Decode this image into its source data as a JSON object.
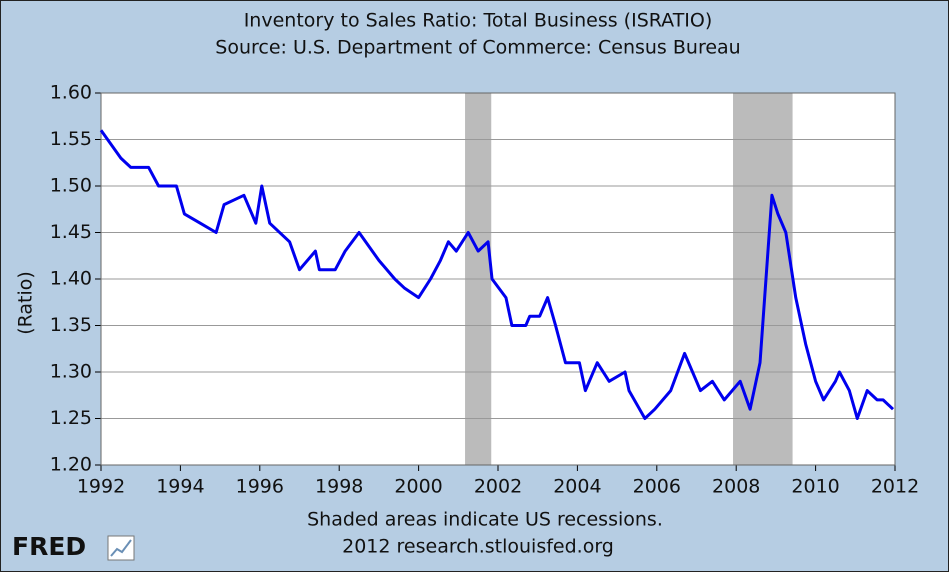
{
  "chart_data": {
    "type": "line",
    "title": "Inventory to Sales Ratio: Total Business (ISRATIO)",
    "subtitle": "Source: U.S. Department of Commerce: Census Bureau",
    "y_label": "(Ratio)",
    "note": "Shaded areas indicate US recessions.",
    "credit": "2012 research.stlouisfed.org",
    "logo": "FRED",
    "grid": true,
    "recession_color": "#bbbbbb",
    "recessions": [
      [
        2001.17,
        2001.83
      ],
      [
        2007.92,
        2009.42
      ]
    ],
    "xlim": [
      1992,
      2012
    ],
    "xticks": [
      1992,
      1994,
      1996,
      1998,
      2000,
      2002,
      2004,
      2006,
      2008,
      2010,
      2012
    ],
    "ylim": [
      1.2,
      1.6
    ],
    "yticks": [
      {
        "value": 1.2,
        "label": "1.20"
      },
      {
        "value": 1.25,
        "label": "1.25"
      },
      {
        "value": 1.3,
        "label": "1.30"
      },
      {
        "value": 1.35,
        "label": "1.35"
      },
      {
        "value": 1.4,
        "label": "1.40"
      },
      {
        "value": 1.45,
        "label": "1.45"
      },
      {
        "value": 1.5,
        "label": "1.50"
      },
      {
        "value": 1.55,
        "label": "1.55"
      },
      {
        "value": 1.6,
        "label": "1.60"
      }
    ],
    "x": [
      1992.0,
      1992.5,
      1992.75,
      1993.2,
      1993.45,
      1993.9,
      1994.1,
      1994.5,
      1994.9,
      1995.1,
      1995.6,
      1995.9,
      1996.05,
      1996.25,
      1996.75,
      1997.0,
      1997.4,
      1997.5,
      1997.9,
      1998.15,
      1998.5,
      1999.0,
      1999.4,
      1999.65,
      2000.0,
      2000.3,
      2000.55,
      2000.75,
      2000.95,
      2001.25,
      2001.5,
      2001.75,
      2001.85,
      2002.2,
      2002.35,
      2002.7,
      2002.8,
      2003.05,
      2003.25,
      2003.45,
      2003.7,
      2004.05,
      2004.2,
      2004.5,
      2004.8,
      2005.2,
      2005.3,
      2005.7,
      2005.95,
      2006.35,
      2006.7,
      2006.9,
      2007.1,
      2007.4,
      2007.7,
      2008.1,
      2008.35,
      2008.6,
      2008.75,
      2008.9,
      2009.05,
      2009.25,
      2009.5,
      2009.75,
      2010.0,
      2010.2,
      2010.5,
      2010.6,
      2010.85,
      2011.05,
      2011.3,
      2011.55,
      2011.7,
      2011.95
    ],
    "series": [
      {
        "name": "ISRATIO",
        "color": "#0000ee",
        "values": [
          1.56,
          1.53,
          1.52,
          1.52,
          1.5,
          1.5,
          1.47,
          1.46,
          1.45,
          1.48,
          1.49,
          1.46,
          1.5,
          1.46,
          1.44,
          1.41,
          1.43,
          1.41,
          1.41,
          1.43,
          1.45,
          1.42,
          1.4,
          1.39,
          1.38,
          1.4,
          1.42,
          1.44,
          1.43,
          1.45,
          1.43,
          1.44,
          1.4,
          1.38,
          1.35,
          1.35,
          1.36,
          1.36,
          1.38,
          1.35,
          1.31,
          1.31,
          1.28,
          1.31,
          1.29,
          1.3,
          1.28,
          1.25,
          1.26,
          1.28,
          1.32,
          1.3,
          1.28,
          1.29,
          1.27,
          1.29,
          1.26,
          1.31,
          1.4,
          1.49,
          1.47,
          1.45,
          1.38,
          1.33,
          1.29,
          1.27,
          1.29,
          1.3,
          1.28,
          1.25,
          1.28,
          1.27,
          1.27,
          1.26
        ]
      }
    ]
  }
}
